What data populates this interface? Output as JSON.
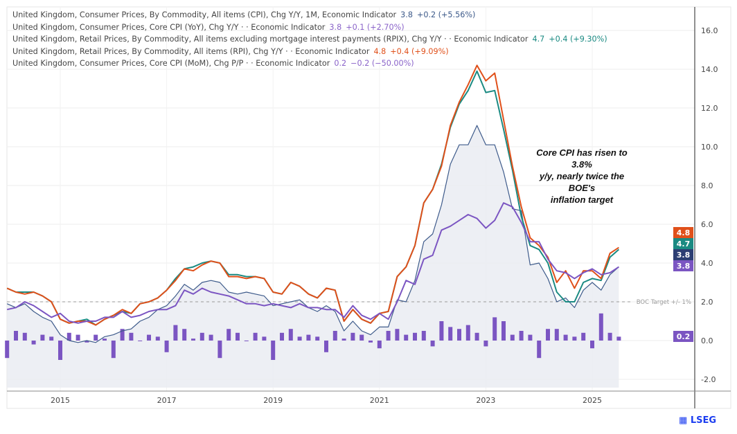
{
  "legend": [
    {
      "label": "United Kingdom, Consumer Prices, By Commodity, All items (CPI), Chg Y/Y, 1M, Economic Indicator",
      "value": "3.8",
      "change": "+0.2 (+5.56%)",
      "color": "#3d5a8a"
    },
    {
      "label": "United Kingdom, Consumer Prices, Core CPI (YoY), Chg Y/Y ·  · Economic Indicator",
      "value": "3.8",
      "change": "+0.1 (+2.70%)",
      "color": "#8a63c9"
    },
    {
      "label": "United Kingdom, Retail Prices, By Commodity, All items excluding mortgage interest payments (RPIX), Chg Y/Y ·  · Economic Indicator",
      "value": "4.7",
      "change": "+0.4 (+9.30%)",
      "color": "#1a8a82"
    },
    {
      "label": "United Kingdom, Retail Prices, By Commodity, All items (RPI), Chg Y/Y ·  · Economic Indicator",
      "value": "4.8",
      "change": "+0.4 (+9.09%)",
      "color": "#e0501a"
    },
    {
      "label": "United Kingdom, Consumer Prices, Core CPI (MoM), Chg P/P ·  · Economic Indicator",
      "value": "0.2",
      "change": "−0.2 (−50.00%)",
      "color": "#8a63c9"
    }
  ],
  "annotation": [
    "Core CPI has risen to 3.8%",
    "y/y, nearly twice the BOE's",
    "inflation target"
  ],
  "logo": "LSEG",
  "chart_data": {
    "type": "line",
    "ylim": [
      -2.6,
      17
    ],
    "yticks": [
      "-2.0",
      "0.0",
      "2.0",
      "4.0",
      "6.0",
      "8.0",
      "10.0",
      "12.0",
      "14.0",
      "16.0"
    ],
    "ytick_values": [
      -2,
      0,
      2,
      4,
      6,
      8,
      10,
      12,
      14,
      16
    ],
    "xticks": [
      "2015",
      "2017",
      "2019",
      "2021",
      "2023",
      "2025"
    ],
    "xlim": [
      "2014-01",
      "2026-10"
    ],
    "grid": true,
    "reference_line": {
      "value": 2.0,
      "label": "BOC Target +/- 1%"
    },
    "x": [
      "2014-01",
      "2014-03",
      "2014-05",
      "2014-07",
      "2014-09",
      "2014-11",
      "2015-01",
      "2015-03",
      "2015-05",
      "2015-07",
      "2015-09",
      "2015-11",
      "2016-01",
      "2016-03",
      "2016-05",
      "2016-07",
      "2016-09",
      "2016-11",
      "2017-01",
      "2017-03",
      "2017-05",
      "2017-07",
      "2017-09",
      "2017-11",
      "2018-01",
      "2018-03",
      "2018-05",
      "2018-07",
      "2018-09",
      "2018-11",
      "2019-01",
      "2019-03",
      "2019-05",
      "2019-07",
      "2019-09",
      "2019-11",
      "2020-01",
      "2020-03",
      "2020-05",
      "2020-07",
      "2020-09",
      "2020-11",
      "2021-01",
      "2021-03",
      "2021-05",
      "2021-07",
      "2021-09",
      "2021-11",
      "2022-01",
      "2022-03",
      "2022-05",
      "2022-07",
      "2022-09",
      "2022-11",
      "2023-01",
      "2023-03",
      "2023-05",
      "2023-07",
      "2023-09",
      "2023-11",
      "2024-01",
      "2024-03",
      "2024-05",
      "2024-07",
      "2024-09",
      "2024-11",
      "2025-01",
      "2025-03",
      "2025-05",
      "2025-07"
    ],
    "series": [
      {
        "key": "cpi",
        "color": "#3d5a8a",
        "fill": true,
        "last_label": "3.8",
        "values": [
          1.9,
          1.7,
          1.9,
          1.5,
          1.2,
          1.0,
          0.3,
          0.0,
          -0.1,
          0.0,
          -0.1,
          0.2,
          0.3,
          0.5,
          0.6,
          1.0,
          1.2,
          1.6,
          1.8,
          2.3,
          2.9,
          2.6,
          3.0,
          3.1,
          3.0,
          2.5,
          2.4,
          2.5,
          2.4,
          2.3,
          1.8,
          1.9,
          2.0,
          2.1,
          1.7,
          1.5,
          1.8,
          1.5,
          0.5,
          1.0,
          0.5,
          0.3,
          0.7,
          0.7,
          2.1,
          2.0,
          3.1,
          5.1,
          5.5,
          7.0,
          9.1,
          10.1,
          10.1,
          11.1,
          10.1,
          10.1,
          8.7,
          6.8,
          6.7,
          3.9,
          4.0,
          3.2,
          2.0,
          2.2,
          1.7,
          2.6,
          3.0,
          2.6,
          3.4,
          3.8
        ]
      },
      {
        "key": "rpix",
        "color": "#1a8a82",
        "last_label": "4.7",
        "values": [
          2.7,
          2.5,
          2.5,
          2.5,
          2.3,
          2.0,
          1.1,
          0.9,
          1.0,
          1.1,
          0.8,
          1.1,
          1.3,
          1.5,
          1.4,
          1.9,
          2.0,
          2.2,
          2.6,
          3.2,
          3.7,
          3.8,
          4.0,
          4.1,
          4.0,
          3.4,
          3.4,
          3.3,
          3.3,
          3.2,
          2.5,
          2.4,
          3.0,
          2.8,
          2.4,
          2.2,
          2.7,
          2.6,
          1.0,
          1.6,
          1.1,
          0.9,
          1.4,
          1.5,
          3.3,
          3.8,
          4.9,
          7.1,
          7.8,
          9.1,
          11.0,
          12.2,
          12.9,
          13.9,
          12.8,
          12.9,
          10.9,
          8.8,
          6.4,
          4.9,
          4.7,
          4.0,
          2.5,
          2.0,
          2.0,
          3.0,
          3.2,
          3.1,
          4.3,
          4.7
        ]
      },
      {
        "key": "rpi",
        "color": "#e0501a",
        "last_label": "4.8",
        "values": [
          2.7,
          2.5,
          2.4,
          2.5,
          2.3,
          2.0,
          1.1,
          0.9,
          1.0,
          1.0,
          0.8,
          1.1,
          1.3,
          1.6,
          1.4,
          1.9,
          2.0,
          2.2,
          2.6,
          3.1,
          3.7,
          3.6,
          3.9,
          4.1,
          4.0,
          3.3,
          3.3,
          3.2,
          3.3,
          3.2,
          2.5,
          2.4,
          3.0,
          2.8,
          2.4,
          2.2,
          2.7,
          2.6,
          1.0,
          1.6,
          1.1,
          0.9,
          1.4,
          1.5,
          3.3,
          3.8,
          4.9,
          7.1,
          7.8,
          9.0,
          11.1,
          12.3,
          13.2,
          14.2,
          13.4,
          13.8,
          11.4,
          9.0,
          6.9,
          5.3,
          4.9,
          4.3,
          3.0,
          3.6,
          2.7,
          3.6,
          3.6,
          3.2,
          4.5,
          4.8
        ]
      },
      {
        "key": "core_yoy",
        "color": "#7b55c2",
        "last_label": "3.8",
        "values": [
          1.6,
          1.7,
          2.0,
          1.8,
          1.5,
          1.2,
          1.4,
          1.0,
          0.9,
          1.0,
          1.0,
          1.2,
          1.2,
          1.5,
          1.2,
          1.3,
          1.5,
          1.6,
          1.6,
          1.8,
          2.6,
          2.4,
          2.7,
          2.5,
          2.4,
          2.3,
          2.1,
          1.9,
          1.9,
          1.8,
          1.9,
          1.8,
          1.7,
          1.9,
          1.7,
          1.7,
          1.6,
          1.6,
          1.2,
          1.8,
          1.3,
          1.1,
          1.4,
          1.1,
          2.0,
          3.1,
          2.9,
          4.2,
          4.4,
          5.7,
          5.9,
          6.2,
          6.5,
          6.3,
          5.8,
          6.2,
          7.1,
          6.9,
          6.1,
          5.1,
          5.1,
          4.2,
          3.6,
          3.5,
          3.2,
          3.5,
          3.7,
          3.4,
          3.5,
          3.8
        ]
      }
    ],
    "bars": {
      "key": "core_mom",
      "color": "#7b55c2",
      "last_label": "0.2",
      "values": [
        -0.9,
        0.5,
        0.4,
        -0.2,
        0.3,
        0.2,
        -1.0,
        0.4,
        0.3,
        -0.1,
        0.3,
        0.1,
        -0.9,
        0.6,
        0.4,
        0.0,
        0.3,
        0.2,
        -0.6,
        0.8,
        0.6,
        0.1,
        0.4,
        0.3,
        -0.9,
        0.6,
        0.4,
        0.0,
        0.4,
        0.2,
        -1.0,
        0.4,
        0.6,
        0.2,
        0.3,
        0.2,
        -0.6,
        0.5,
        0.1,
        0.4,
        0.3,
        -0.1,
        -0.4,
        0.5,
        0.6,
        0.3,
        0.4,
        0.5,
        -0.3,
        1.0,
        0.7,
        0.6,
        0.8,
        0.4,
        -0.3,
        1.2,
        1.0,
        0.3,
        0.5,
        0.3,
        -0.9,
        0.6,
        0.6,
        0.3,
        0.2,
        0.4,
        -0.4,
        1.4,
        0.4,
        0.2
      ]
    }
  }
}
